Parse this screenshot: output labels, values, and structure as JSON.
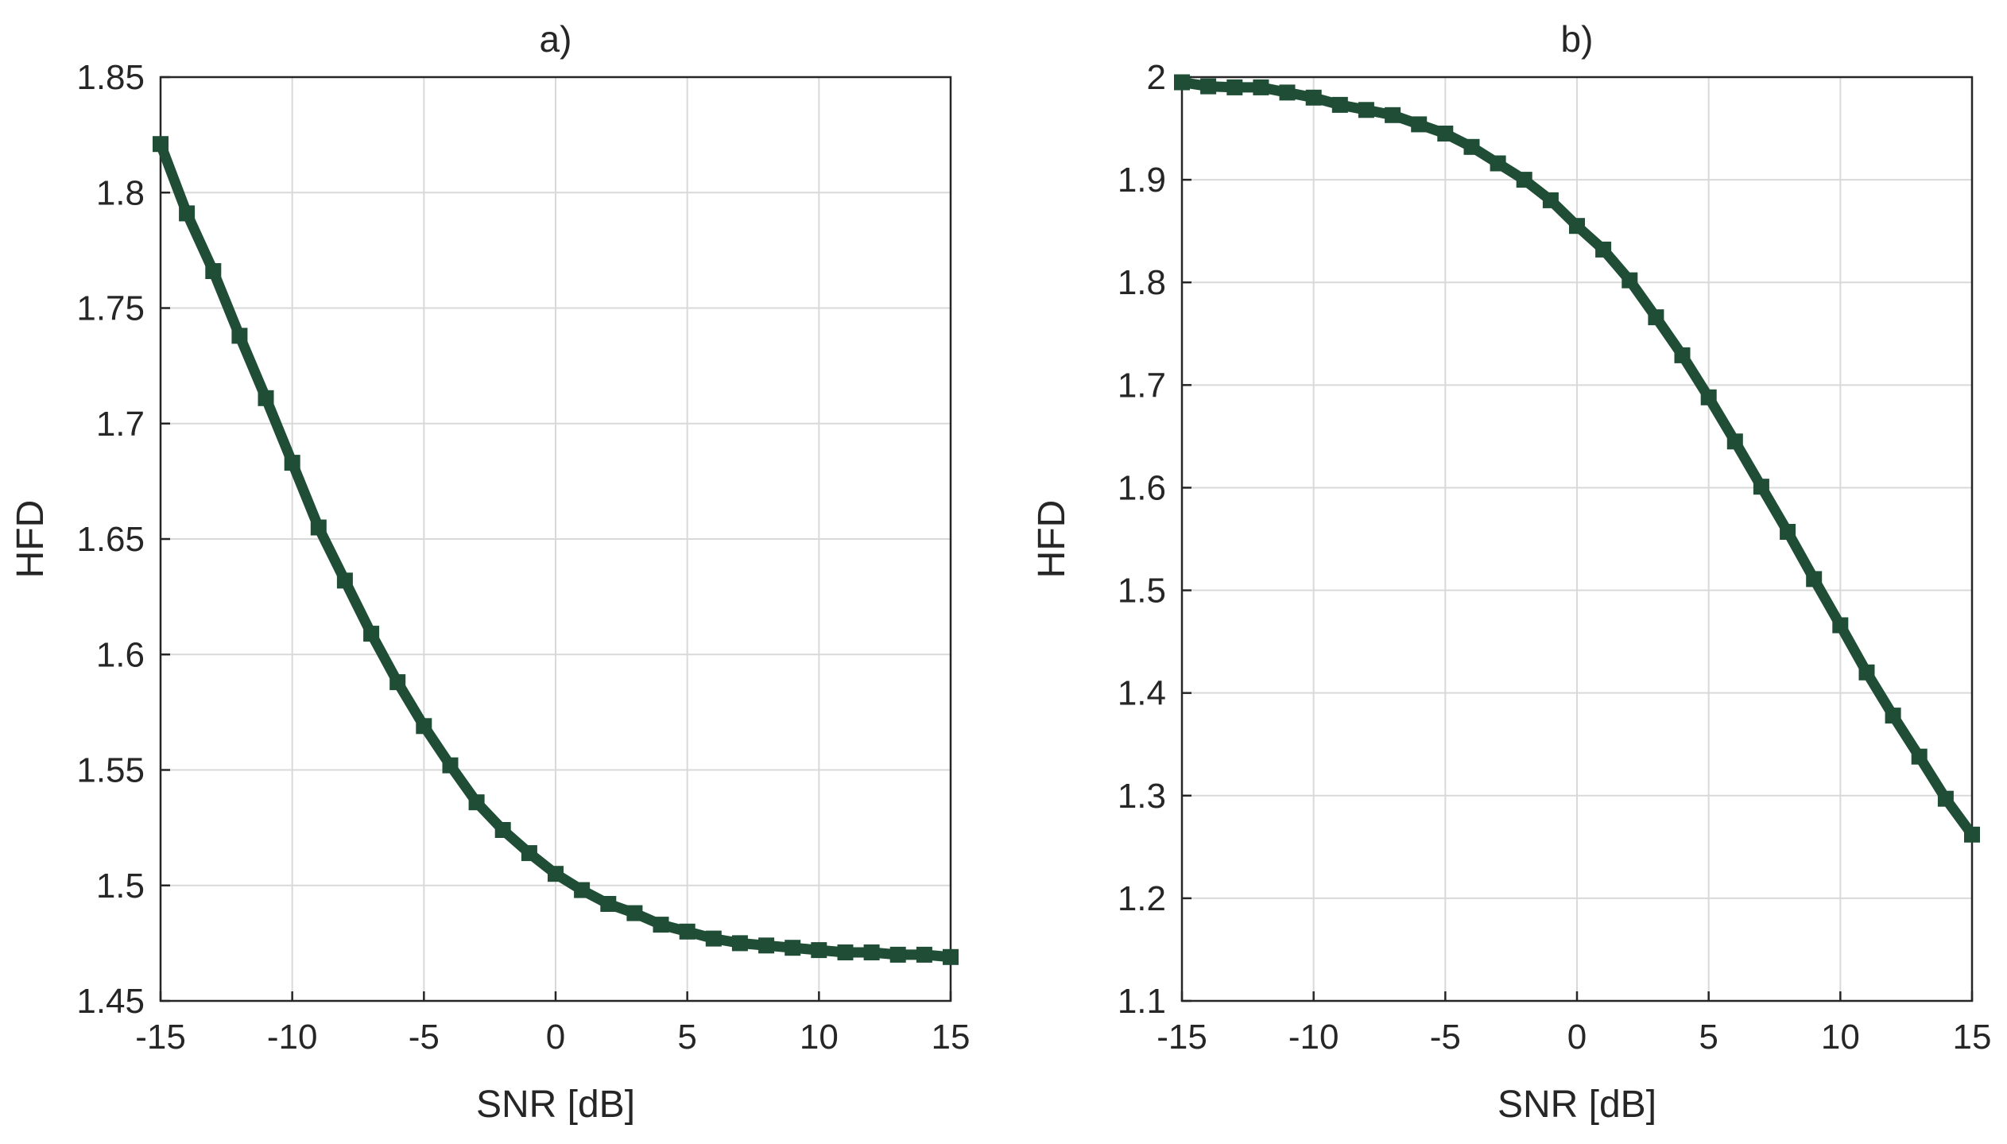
{
  "chart_data": [
    {
      "panel": "a",
      "type": "line",
      "title": "a)",
      "xlabel": "SNR  [dB]",
      "ylabel": "HFD",
      "xlim": [
        -15,
        15
      ],
      "ylim": [
        1.45,
        1.85
      ],
      "xticks": [
        "-15",
        "-10",
        "-5",
        "0",
        "5",
        "10",
        "15"
      ],
      "yticks": [
        "1.45",
        "1.5",
        "1.55",
        "1.6",
        "1.65",
        "1.7",
        "1.75",
        "1.8",
        "1.85"
      ],
      "grid": true,
      "marker": "square",
      "color": "#1f4d35",
      "x": [
        -15,
        -14,
        -13,
        -12,
        -11,
        -10,
        -9,
        -8,
        -7,
        -6,
        -5,
        -4,
        -3,
        -2,
        -1,
        0,
        1,
        2,
        3,
        4,
        5,
        6,
        7,
        8,
        9,
        10,
        11,
        12,
        13,
        14,
        15
      ],
      "y": [
        1.821,
        1.791,
        1.766,
        1.738,
        1.711,
        1.683,
        1.655,
        1.632,
        1.609,
        1.588,
        1.569,
        1.552,
        1.536,
        1.524,
        1.514,
        1.505,
        1.498,
        1.492,
        1.488,
        1.483,
        1.48,
        1.477,
        1.475,
        1.474,
        1.473,
        1.472,
        1.471,
        1.471,
        1.47,
        1.47,
        1.469
      ]
    },
    {
      "panel": "b",
      "type": "line",
      "title": "b)",
      "xlabel": "SNR  [dB]",
      "ylabel": "HFD",
      "xlim": [
        -15,
        15
      ],
      "ylim": [
        1.1,
        2.0
      ],
      "xticks": [
        "-15",
        "-10",
        "-5",
        "0",
        "5",
        "10",
        "15"
      ],
      "yticks": [
        "1.1",
        "1.2",
        "1.3",
        "1.4",
        "1.5",
        "1.6",
        "1.7",
        "1.8",
        "1.9",
        "2"
      ],
      "grid": true,
      "marker": "square",
      "color": "#1f4d35",
      "x": [
        -15,
        -14,
        -13,
        -12,
        -11,
        -10,
        -9,
        -8,
        -7,
        -6,
        -5,
        -4,
        -3,
        -2,
        -1,
        0,
        1,
        2,
        3,
        4,
        5,
        6,
        7,
        8,
        9,
        10,
        11,
        12,
        13,
        14,
        15
      ],
      "y": [
        1.995,
        1.991,
        1.99,
        1.99,
        1.985,
        1.98,
        1.973,
        1.968,
        1.963,
        1.954,
        1.945,
        1.932,
        1.916,
        1.9,
        1.88,
        1.855,
        1.832,
        1.802,
        1.766,
        1.729,
        1.688,
        1.645,
        1.601,
        1.557,
        1.511,
        1.466,
        1.42,
        1.378,
        1.338,
        1.297,
        1.262
      ]
    }
  ]
}
